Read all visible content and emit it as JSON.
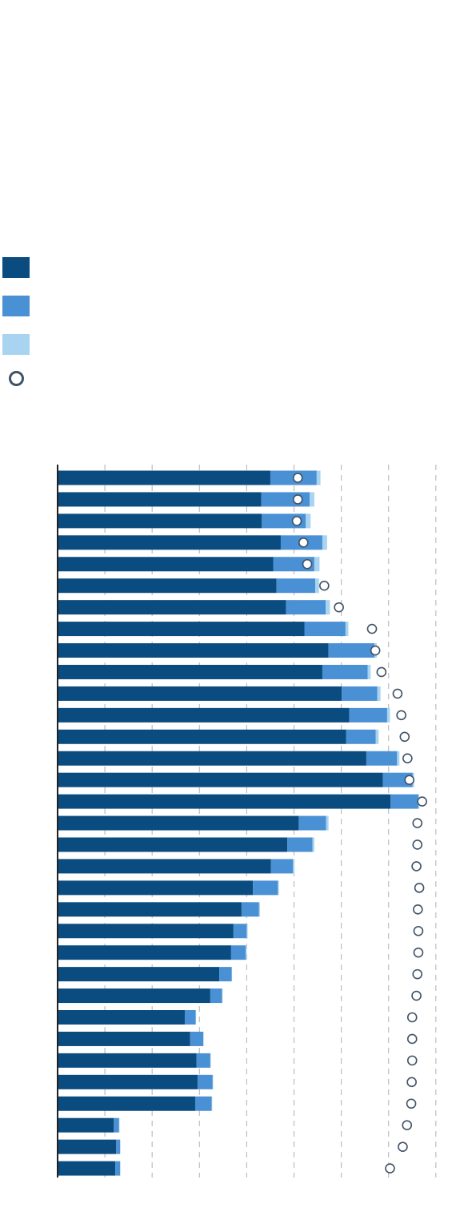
{
  "colors": {
    "series1": "#0b4c80",
    "series2": "#4a90d4",
    "series3": "#a8d4f2",
    "marker": "#3f5266",
    "grid": "#bdbdbd",
    "axis": "#222222"
  },
  "legend": [
    {
      "label": "",
      "swatch": "series1"
    },
    {
      "label": "",
      "swatch": "series2"
    },
    {
      "label": "",
      "swatch": "series3"
    },
    {
      "label": "",
      "swatch": "marker"
    }
  ],
  "chart_data": {
    "type": "bar",
    "orientation": "horizontal",
    "stacked": true,
    "grid": true,
    "xlim": [
      0,
      80
    ],
    "x_gridlines": [
      10,
      20,
      30,
      40,
      50,
      60,
      70,
      80
    ],
    "categories": [
      "",
      "",
      "",
      "",
      "",
      "",
      "",
      "",
      "",
      "",
      "",
      "",
      "",
      "",
      "",
      "",
      "",
      "",
      "",
      "",
      "",
      "",
      "",
      "",
      "",
      "",
      "",
      "",
      "",
      "",
      "",
      "",
      ""
    ],
    "series": [
      {
        "values": [
          45.0,
          43.1,
          43.2,
          47.2,
          45.6,
          46.3,
          48.3,
          52.2,
          57.3,
          56.0,
          60.1,
          61.7,
          61.0,
          65.3,
          68.8,
          70.4,
          51.0,
          48.6,
          45.1,
          41.3,
          38.9,
          37.2,
          36.7,
          34.2,
          32.3,
          26.9,
          28.0,
          29.4,
          29.6,
          29.1,
          11.9,
          12.4,
          12.2
        ]
      },
      {
        "values": [
          9.8,
          10.2,
          9.3,
          8.8,
          8.7,
          8.2,
          8.4,
          8.7,
          9.7,
          9.6,
          7.5,
          8.0,
          6.3,
          6.5,
          6.3,
          5.9,
          5.8,
          5.3,
          4.7,
          5.3,
          3.7,
          2.8,
          3.1,
          2.6,
          2.5,
          2.3,
          2.8,
          2.9,
          3.2,
          3.5,
          1.1,
          0.8,
          1.0
        ]
      },
      {
        "values": [
          0.8,
          1.0,
          1.0,
          1.0,
          1.1,
          0.8,
          0.9,
          0.6,
          0.5,
          0.6,
          0.7,
          0.6,
          0.6,
          0.5,
          0.3,
          0.2,
          0.5,
          0.4,
          0.3,
          0.2,
          0.2,
          0.2,
          0.2,
          0.1,
          0.1,
          0.1,
          0.1,
          0.1,
          0.1,
          0.1,
          0.1,
          0.1,
          0.1
        ]
      },
      {
        "type": "marker",
        "values": [
          50.8,
          50.8,
          50.6,
          52.0,
          52.8,
          56.4,
          59.5,
          66.5,
          67.2,
          68.5,
          71.9,
          72.7,
          73.4,
          74.0,
          74.4,
          77.1,
          76.1,
          76.1,
          75.9,
          76.5,
          76.2,
          76.3,
          76.3,
          76.1,
          75.9,
          75.0,
          75.0,
          75.0,
          74.9,
          74.8,
          73.9,
          73.0,
          70.3
        ]
      }
    ]
  }
}
